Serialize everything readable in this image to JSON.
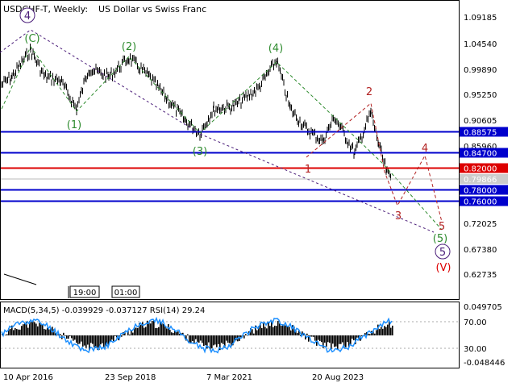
{
  "header": {
    "symbol": "USDCHF-T, Weekly:",
    "description": "US Dollar vs Swiss Franc"
  },
  "price_axis": {
    "labels": [
      "1.09185",
      "1.04540",
      "0.99890",
      "0.95250",
      "0.90605",
      "0.85960",
      "0.72025",
      "0.67380",
      "0.62735"
    ]
  },
  "levels": [
    {
      "label": "0.88575",
      "value": 0.88575,
      "color": "#0000cc"
    },
    {
      "label": "0.84700",
      "value": 0.847,
      "color": "#0000cc"
    },
    {
      "label": "0.82000",
      "value": 0.82,
      "color": "#dd0000"
    },
    {
      "label": "0.78000",
      "value": 0.78,
      "color": "#0000cc"
    },
    {
      "label": "0.76000",
      "value": 0.76,
      "color": "#0000cc"
    }
  ],
  "current_price": "0.79866",
  "wave_labels": {
    "purple_4": "4",
    "green_C": "(C)",
    "green_1": "(1)",
    "green_2": "(2)",
    "green_3": "(3)",
    "green_4": "(4)",
    "green_5": "(5)",
    "purple_5": "5",
    "red_V": "(V)",
    "red_1": "1",
    "red_2": "2",
    "red_3": "3",
    "red_4": "4",
    "red_5": "5"
  },
  "time_markers": [
    "19:00",
    "01:00"
  ],
  "indicator": {
    "title": "MACD(5,34,5) -0.039929 -0.037127 RSI(14) 29.24",
    "axis_labels": [
      "0.049705",
      "70.00",
      "30.00",
      "-0.048446"
    ]
  },
  "date_axis": {
    "labels": [
      "10 Apr 2016",
      "23 Sep 2018",
      "7 Mar 2021",
      "20 Aug 2023"
    ]
  },
  "colors": {
    "up_candle": "#000000",
    "level_blue": "#0000cc",
    "level_red": "#dd0000",
    "wave_green": "#2e8b2e",
    "wave_purple": "#4b1e7a",
    "wave_red": "#b22222",
    "rsi_blue": "#1e90ff"
  }
}
